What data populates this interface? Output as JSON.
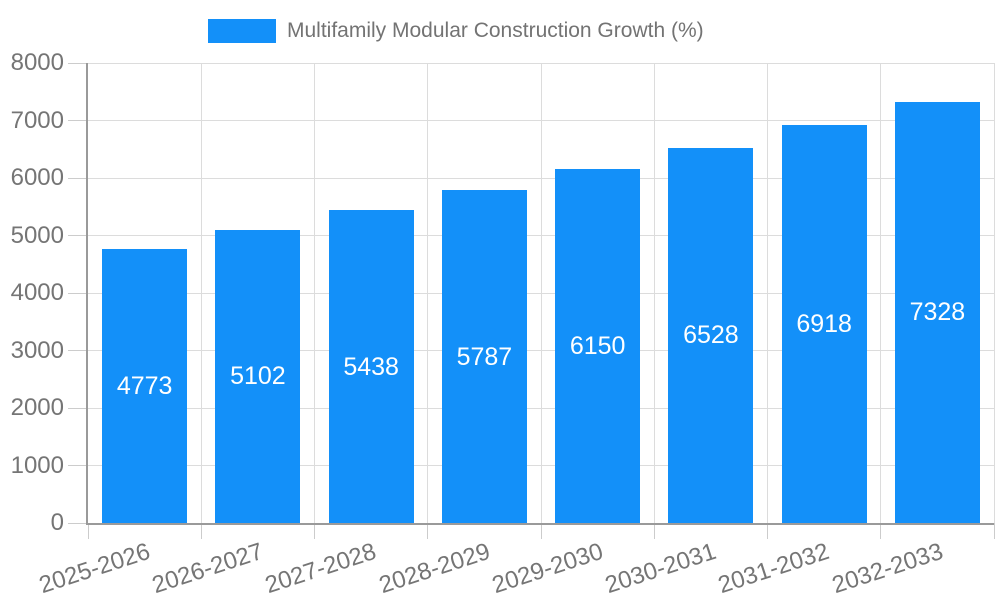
{
  "chart_data": {
    "type": "bar",
    "title": "Multifamily Modular Construction Growth (%)",
    "categories": [
      "2025-2026",
      "2026-2027",
      "2027-2028",
      "2028-2029",
      "2029-2030",
      "2030-2031",
      "2031-2032",
      "2032-2033"
    ],
    "values": [
      4773,
      5102,
      5438,
      5787,
      6150,
      6528,
      6918,
      7328
    ],
    "xlabel": "",
    "ylabel": "",
    "ylim": [
      0,
      8000
    ],
    "yticks": [
      0,
      1000,
      2000,
      3000,
      4000,
      5000,
      6000,
      7000,
      8000
    ],
    "grid": true,
    "legend_position": "top-center",
    "value_label_position": "inside-center",
    "x_tick_rotation_deg": -18,
    "colors": {
      "bar": "#1390f9",
      "value_label": "#ffffff",
      "tick_label": "#757575",
      "legend_text": "#737373",
      "grid_line": "#dcdcdc",
      "tick_mark": "#cccccc",
      "axis_line": "#9a9a9a",
      "background": "#ffffff"
    }
  },
  "legend": {
    "label": "Multifamily Modular Construction Growth (%)"
  }
}
